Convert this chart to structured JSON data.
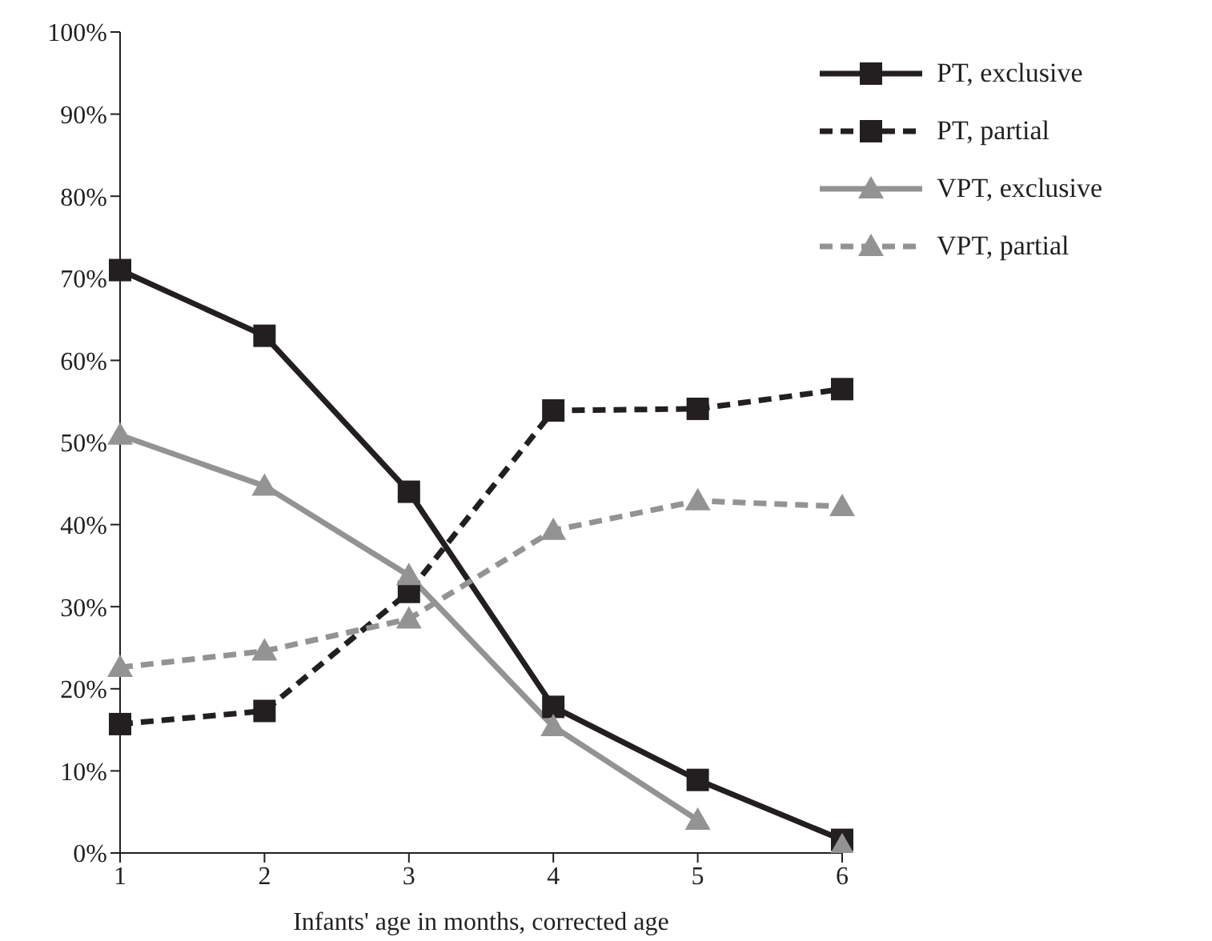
{
  "chart_data": {
    "type": "line",
    "xlabel": "Infants' age in months, corrected age",
    "categories": [
      "1",
      "2",
      "3",
      "4",
      "5",
      "6"
    ],
    "series": [
      {
        "name": "PT, exclusive",
        "color": "#231f20",
        "values": [
          71.0,
          63.0,
          44.0,
          17.8,
          8.9,
          1.6
        ],
        "marker": "square",
        "line_style": "solid"
      },
      {
        "name": "PT, partial",
        "color": "#231f20",
        "values": [
          15.7,
          17.3,
          31.8,
          53.9,
          54.1,
          56.5
        ],
        "marker": "square",
        "line_style": "dashed"
      },
      {
        "name": "VPT, exclusive",
        "color": "#939393",
        "values": [
          50.9,
          44.7,
          33.8,
          15.4,
          4.0,
          null
        ],
        "marker": "triangle",
        "line_style": "solid"
      },
      {
        "name": "VPT, partial",
        "color": "#939393",
        "values": [
          22.6,
          24.6,
          28.5,
          39.3,
          42.9,
          42.2
        ],
        "marker": "triangle",
        "line_style": "dashed"
      },
      {
        "type": "scatter",
        "color": "#939393",
        "values": [
          null,
          null,
          null,
          null,
          null,
          0.9
        ],
        "marker": "triangle"
      }
    ],
    "ylim": [
      0,
      100
    ],
    "yticks": [
      {
        "value": 0,
        "label": "0%"
      },
      {
        "value": 10,
        "label": "10%"
      },
      {
        "value": 20,
        "label": "20%"
      },
      {
        "value": 30,
        "label": "30%"
      },
      {
        "value": 40,
        "label": "40%"
      },
      {
        "value": 50,
        "label": "50%"
      },
      {
        "value": 60,
        "label": "60%"
      },
      {
        "value": 70,
        "label": "70%"
      },
      {
        "value": 80,
        "label": "80%"
      },
      {
        "value": 90,
        "label": "90%"
      },
      {
        "value": 100,
        "label": "100%"
      }
    ],
    "grid": false,
    "legend": "top right"
  }
}
